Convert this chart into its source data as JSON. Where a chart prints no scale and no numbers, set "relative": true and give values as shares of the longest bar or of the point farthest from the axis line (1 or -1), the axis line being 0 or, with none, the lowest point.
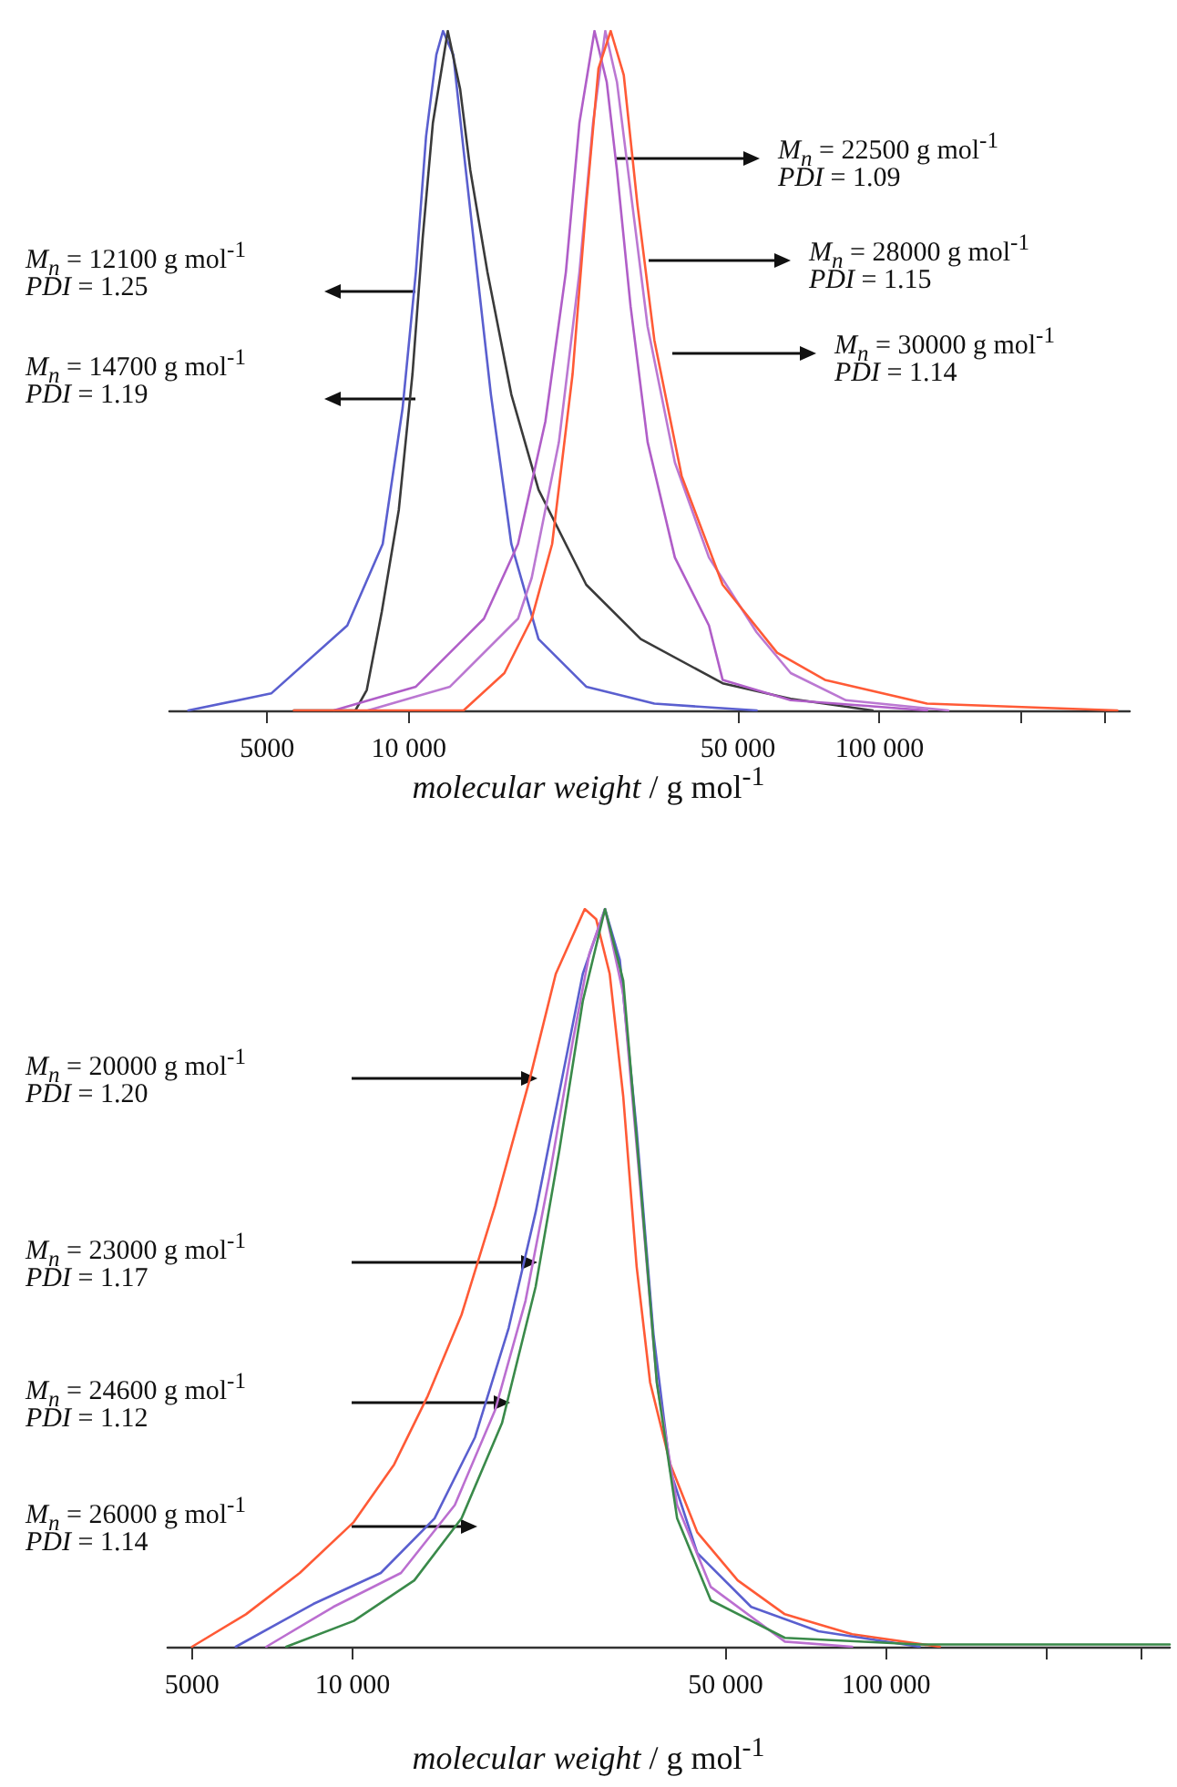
{
  "chart_data": [
    {
      "type": "line",
      "relative": true,
      "log": "x",
      "marker": "none",
      "line_style": "solid",
      "xlim": [
        3100,
        340000
      ],
      "xticks": [
        5000,
        {
          "value": 10000,
          "label": "10 000"
        },
        {
          "value": 50000,
          "label": "50 000"
        },
        {
          "value": 100000,
          "label": "100 000"
        },
        {
          "value": 200000,
          "label": null
        },
        {
          "value": 300000,
          "label": null
        }
      ],
      "xlabel": "molecular weight / g mol$^{-1}$",
      "series": [
        {
          "color": "#5a5fcf",
          "x": [
            3400,
            5100,
            7400,
            8800,
            9700,
            10350,
            10880,
            11440,
            11820,
            12430,
            13070,
            13970,
            14940,
            16510,
            18860,
            23820,
            33240,
            54830
          ],
          "values": [
            0,
            0.025,
            0.125,
            0.245,
            0.445,
            0.645,
            0.845,
            0.965,
            1,
            0.965,
            0.825,
            0.645,
            0.465,
            0.245,
            0.105,
            0.035,
            0.01,
            0
          ]
        },
        {
          "color": "#3a3a3a",
          "x": [
            5700,
            7700,
            8140,
            8760,
            9520,
            10180,
            10700,
            11250,
            12100,
            12850,
            13510,
            14690,
            16510,
            18860,
            23820,
            31100,
            46420,
            64780,
            96650
          ],
          "values": [
            0,
            0,
            0.03,
            0.145,
            0.295,
            0.495,
            0.695,
            0.865,
            1,
            0.915,
            0.795,
            0.645,
            0.465,
            0.325,
            0.185,
            0.105,
            0.04,
            0.017,
            0
          ]
        },
        {
          "color": "#b05ec8",
          "x": [
            6930,
            10350,
            14440,
            17060,
            19500,
            21560,
            23040,
            24800,
            26330,
            27680,
            29590,
            32160,
            36750,
            43420,
            46420,
            64780,
            126200
          ],
          "values": [
            0,
            0.035,
            0.135,
            0.245,
            0.425,
            0.645,
            0.865,
            1,
            0.925,
            0.795,
            0.595,
            0.395,
            0.225,
            0.125,
            0.045,
            0.015,
            0
          ]
        },
        {
          "color": "#bb78d2",
          "x": [
            8190,
            12230,
            17060,
            18240,
            20840,
            23040,
            24630,
            26150,
            27680,
            29590,
            32160,
            36750,
            43420,
            54830,
            64780,
            84850,
            140000
          ],
          "values": [
            0,
            0.035,
            0.135,
            0.195,
            0.395,
            0.645,
            0.865,
            1,
            0.925,
            0.765,
            0.565,
            0.365,
            0.225,
            0.115,
            0.055,
            0.015,
            0
          ]
        },
        {
          "color": "#ff5a36",
          "x": [
            5700,
            13070,
            15960,
            18240,
            20160,
            22280,
            23820,
            25290,
            26850,
            28620,
            30590,
            33240,
            37990,
            46420,
            60600,
            76560,
            126200,
            320000
          ],
          "values": [
            0,
            0,
            0.055,
            0.135,
            0.245,
            0.495,
            0.745,
            0.945,
            1,
            0.935,
            0.745,
            0.545,
            0.345,
            0.185,
            0.085,
            0.045,
            0.01,
            0
          ]
        }
      ],
      "annotations": [
        "M$_{n}$ = 12100 g mol$^{-1}$",
        "PDI = 1.25",
        "M$_{n}$ = 14700 g mol$^{-1}$",
        "PDI = 1.19",
        "M$_{n}$ = 22500 g mol$^{-1}$",
        "PDI = 1.09",
        "M$_{n}$ = 28000 g mol$^{-1}$",
        "PDI = 1.15",
        "M$_{n}$ = 30000 g mol$^{-1}$",
        "PDI = 1.14"
      ]
    },
    {
      "type": "line",
      "relative": true,
      "log": "x",
      "marker": "none",
      "line_style": "solid",
      "xlim": [
        4500,
        340000
      ],
      "xticks": [
        5000,
        {
          "value": 10000,
          "label": "10 000"
        },
        {
          "value": 50000,
          "label": "50 000"
        },
        {
          "value": 100000,
          "label": "100 000"
        },
        {
          "value": 200000,
          "label": null
        },
        {
          "value": 300000,
          "label": null
        }
      ],
      "xlabel": "molecular weight / g mol$^{-1}$",
      "series": [
        {
          "color": "#ff5a36",
          "x": [
            5000,
            6310,
            7960,
            10050,
            11960,
            13830,
            16000,
            18500,
            21400,
            24030,
            27230,
            28610,
            30330,
            32150,
            34070,
            36110,
            39410,
            44260,
            52690,
            64590,
            86350,
            126000
          ],
          "values": [
            0,
            0.044,
            0.1,
            0.169,
            0.247,
            0.34,
            0.45,
            0.598,
            0.765,
            0.912,
            1,
            0.986,
            0.912,
            0.746,
            0.515,
            0.358,
            0.247,
            0.155,
            0.09,
            0.044,
            0.017,
            0
          ]
        },
        {
          "color": "#5a5fcf",
          "x": [
            6040,
            8440,
            11290,
            14240,
            16960,
            19610,
            22030,
            24750,
            27000,
            29720,
            31680,
            34070,
            36640,
            39410,
            44260,
            55840,
            74680,
            115500
          ],
          "values": [
            0,
            0.058,
            0.1,
            0.174,
            0.284,
            0.432,
            0.589,
            0.774,
            0.912,
            1,
            0.931,
            0.7,
            0.423,
            0.238,
            0.127,
            0.054,
            0.021,
            0
          ]
        },
        {
          "color": "#bb6fd0",
          "x": [
            6890,
            9200,
            12320,
            15540,
            18500,
            21090,
            23350,
            25850,
            27790,
            29720,
            32150,
            34570,
            37170,
            40570,
            46920,
            64590,
            86350
          ],
          "values": [
            0,
            0.054,
            0.1,
            0.192,
            0.321,
            0.469,
            0.635,
            0.82,
            0.94,
            1,
            0.885,
            0.626,
            0.358,
            0.192,
            0.081,
            0.007,
            0
          ]
        },
        {
          "color": "#3a8a4a",
          "x": [
            7510,
            10050,
            13050,
            16000,
            19050,
            22030,
            24390,
            27000,
            29720,
            32150,
            34570,
            37170,
            40570,
            46920,
            64590,
            115500,
            340000
          ],
          "values": [
            0,
            0.035,
            0.09,
            0.174,
            0.303,
            0.488,
            0.672,
            0.875,
            1,
            0.903,
            0.635,
            0.358,
            0.174,
            0.063,
            0.012,
            0.003,
            0.003
          ]
        }
      ],
      "annotations": [
        "M$_{n}$ = 20000 g mol$^{-1}$",
        "PDI = 1.20",
        "M$_{n}$ = 23000 g mol$^{-1}$",
        "PDI = 1.17",
        "M$_{n}$ = 24600 g mol$^{-1}$",
        "PDI = 1.12",
        "M$_{n}$ = 26000 g mol$^{-1}$",
        "PDI = 1.14"
      ]
    }
  ]
}
